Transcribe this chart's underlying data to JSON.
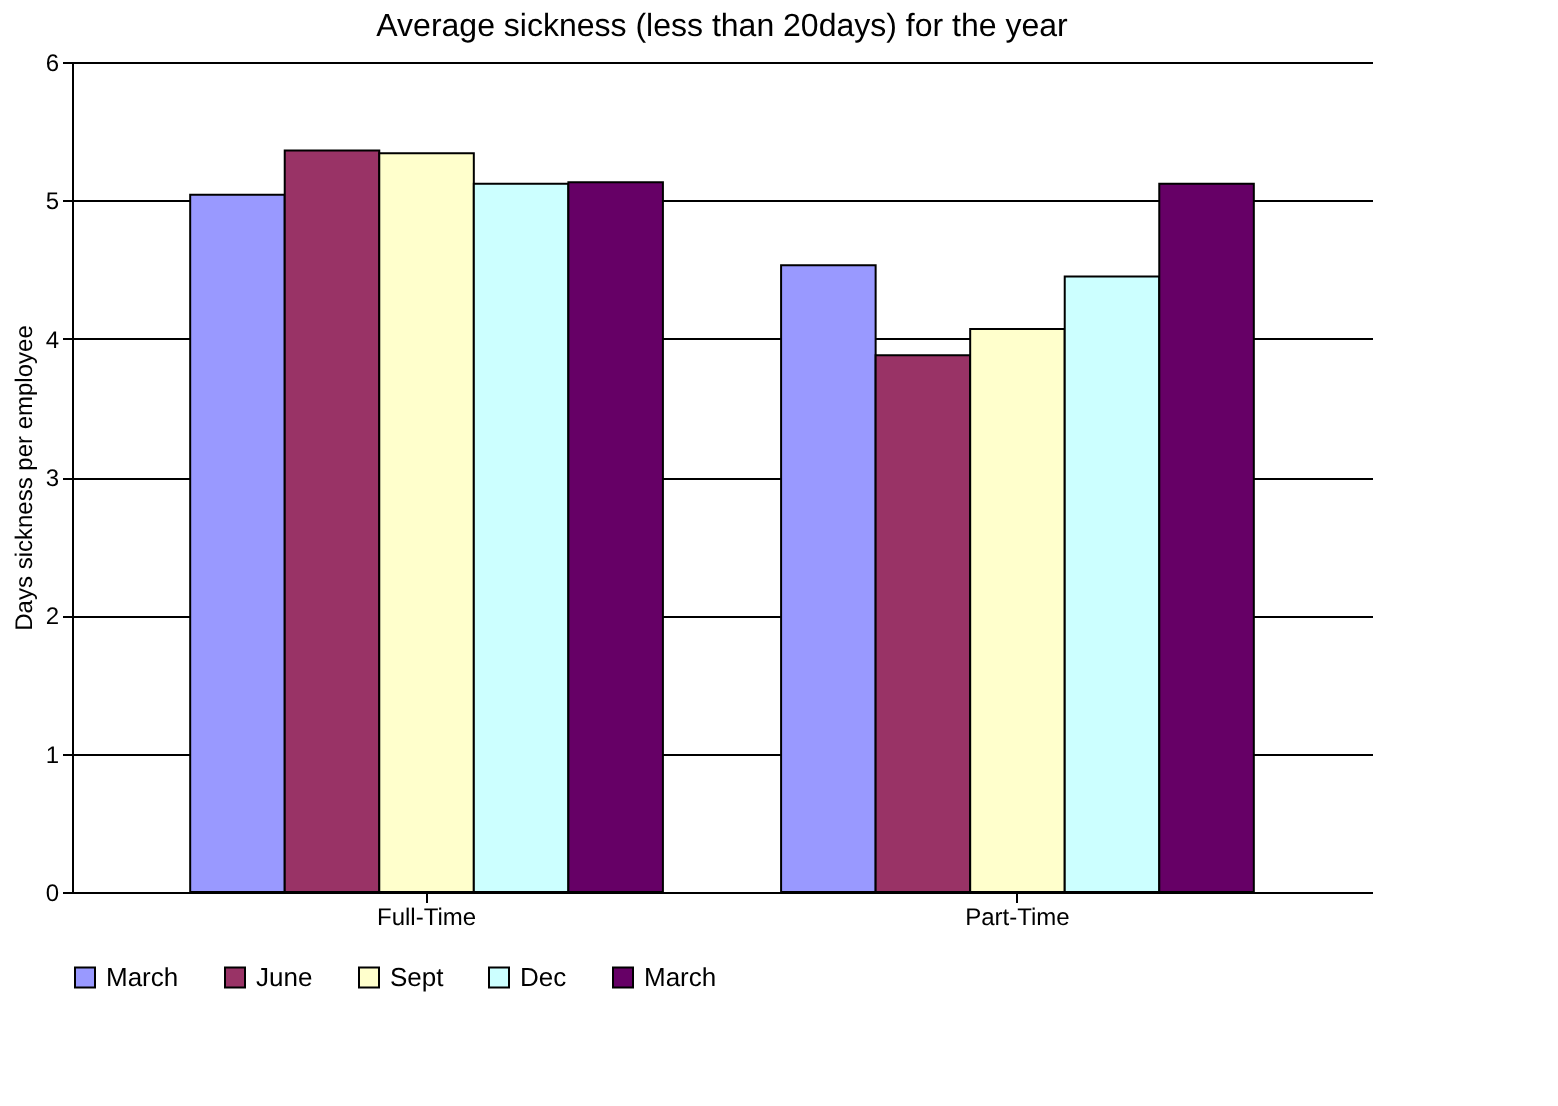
{
  "chart_data": {
    "type": "bar",
    "title": "Average sickness (less than 20days) for the year",
    "ylabel": "Days sickness per employee",
    "categories": [
      "Full-Time",
      "Part-Time"
    ],
    "series": [
      {
        "name": "March",
        "color": "#9999ff",
        "values": [
          5.04,
          4.53
        ]
      },
      {
        "name": "June",
        "color": "#993366",
        "values": [
          5.36,
          3.88
        ]
      },
      {
        "name": "Sept",
        "color": "#ffffcc",
        "values": [
          5.34,
          4.07
        ]
      },
      {
        "name": "Dec",
        "color": "#ccffff",
        "values": [
          5.12,
          4.45
        ]
      },
      {
        "name": "March",
        "color": "#660066",
        "values": [
          5.13,
          5.12
        ]
      }
    ],
    "ylim": [
      0,
      6
    ],
    "yticks": [
      0,
      1,
      2,
      3,
      4,
      5,
      6
    ],
    "grid": "y",
    "legend": "bottom"
  }
}
